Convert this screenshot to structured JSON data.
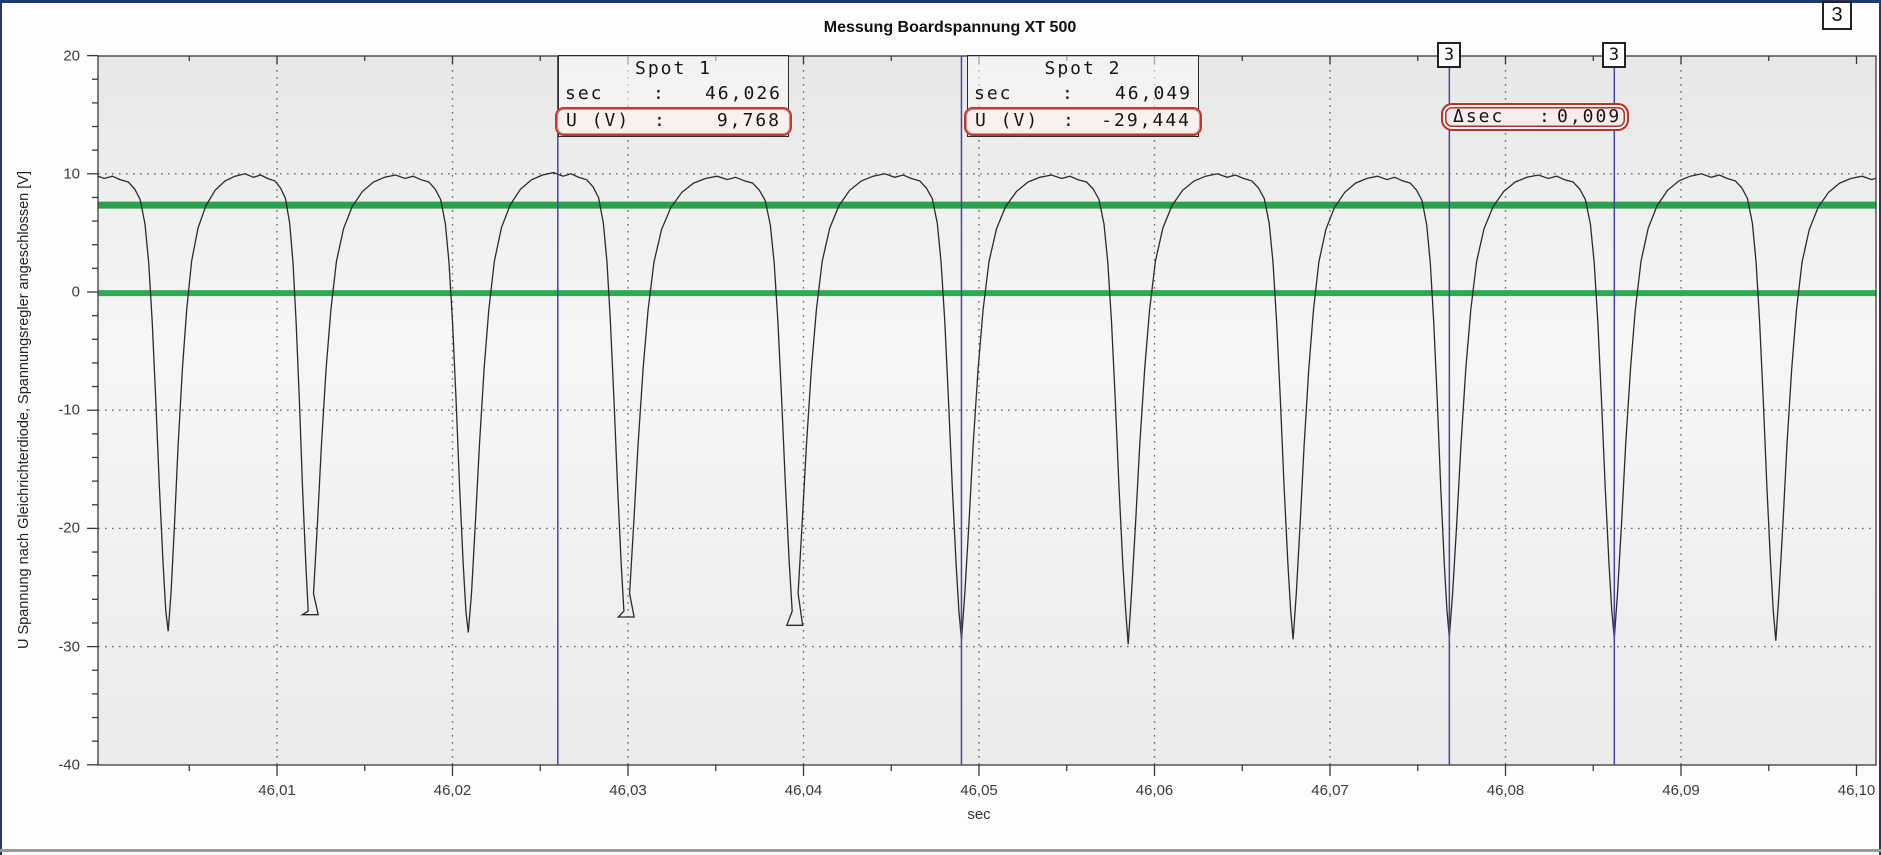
{
  "window": {
    "corner_badge": "3"
  },
  "chart_data": {
    "type": "line",
    "title": "Messung Boardspannung XT 500",
    "xlabel": "sec",
    "ylabel": "U Spannung nach Gleichrichterdiode, Spannungsregler angeschlossen [V]",
    "xlim": [
      46.0,
      46.101
    ],
    "ylim": [
      -40,
      20
    ],
    "x_ticks": [
      {
        "t": 46.01,
        "label": "46,01"
      },
      {
        "t": 46.02,
        "label": "46,02"
      },
      {
        "t": 46.03,
        "label": "46,03"
      },
      {
        "t": 46.04,
        "label": "46,04"
      },
      {
        "t": 46.05,
        "label": "46,05"
      },
      {
        "t": 46.06,
        "label": "46,06"
      },
      {
        "t": 46.07,
        "label": "46,07"
      },
      {
        "t": 46.08,
        "label": "46,08"
      },
      {
        "t": 46.09,
        "label": "46,09"
      },
      {
        "t": 46.1,
        "label": "46,10"
      }
    ],
    "x_minor_step": 0.005,
    "y_ticks": [
      {
        "v": 20,
        "label": "20"
      },
      {
        "v": 10,
        "label": "10"
      },
      {
        "v": 0,
        "label": "0"
      },
      {
        "v": -10,
        "label": "-10"
      },
      {
        "v": -20,
        "label": "-20"
      },
      {
        "v": -30,
        "label": "-30"
      },
      {
        "v": -40,
        "label": "-40"
      }
    ],
    "y_minor_step": 2,
    "grid": {
      "style": "dotted",
      "color": "#4a4a4a",
      "x_lines": [
        46.01,
        46.02,
        46.03,
        46.04,
        46.05,
        46.06,
        46.07,
        46.08,
        46.09
      ],
      "y_lines": [
        10,
        0,
        -10,
        -20,
        -30
      ]
    },
    "reference_lines": [
      {
        "name": "upper-green-line",
        "v": 7.35,
        "color": "#28a24c",
        "width": 7
      },
      {
        "name": "zero-green-line",
        "v": -0.1,
        "color": "#2bab52",
        "width": 6
      }
    ],
    "cursors": [
      {
        "name": "spot-1-cursor",
        "t": 46.026,
        "color": "#4545a8"
      },
      {
        "name": "spot-2-cursor",
        "t": 46.049,
        "color": "#4545a8"
      },
      {
        "name": "delta-cursor-a",
        "t": 46.0768,
        "color": "#4545a8",
        "flag": "3"
      },
      {
        "name": "delta-cursor-b",
        "t": 46.0862,
        "color": "#4545a8",
        "flag": "3"
      }
    ],
    "waveform": {
      "color": "#2b2b2b",
      "period_sec": 0.0091,
      "peak_v_approx": 10,
      "min_v_approx": -29.4,
      "dips": [
        {
          "t": 46.0038,
          "min": -28.7
        },
        {
          "t": 46.0119,
          "min": -27.3,
          "flat": true
        },
        {
          "t": 46.0209,
          "min": -28.8
        },
        {
          "t": 46.0299,
          "min": -27.5,
          "flat": true
        },
        {
          "t": 46.0395,
          "min": -28.2,
          "flat": true
        },
        {
          "t": 46.049,
          "min": -29.4
        },
        {
          "t": 46.0585,
          "min": -29.8
        },
        {
          "t": 46.0679,
          "min": -29.4
        },
        {
          "t": 46.0768,
          "min": -29.2
        },
        {
          "t": 46.0862,
          "min": -29.3
        },
        {
          "t": 46.0954,
          "min": -29.5
        }
      ],
      "peaks": [
        9.9,
        10,
        9.9,
        10.1,
        9.8,
        10,
        9.9,
        10,
        9.8,
        9.9,
        10,
        9.8
      ],
      "template": {
        "phase": [
          0,
          0.02,
          0.045,
          0.07,
          0.1,
          0.13,
          0.165,
          0.21,
          0.265,
          0.33,
          0.4,
          0.47,
          0.54,
          0.6,
          0.65,
          0.7,
          0.75,
          0.79,
          0.825,
          0.855,
          0.878,
          0.9,
          0.922,
          0.945,
          0.968,
          0.985,
          1
        ],
        "v": [
          -29,
          -25.5,
          -19.5,
          -13,
          -6.5,
          -1.5,
          2.6,
          5.4,
          7.3,
          8.6,
          9.4,
          9.8,
          10,
          9.7,
          9.9,
          9.6,
          9.4,
          8.8,
          7.9,
          5.8,
          2.5,
          -2.5,
          -9,
          -16.5,
          -23,
          -27,
          -29
        ]
      }
    }
  },
  "annotations": {
    "spot1": {
      "title": "Spot 1",
      "rows": [
        {
          "label": "sec",
          "sep": ":",
          "value": "46,026"
        },
        {
          "label": "U (V)",
          "sep": ":",
          "value": "9,768"
        }
      ]
    },
    "spot2": {
      "title": "Spot 2",
      "rows": [
        {
          "label": "sec",
          "sep": ":",
          "value": "46,049"
        },
        {
          "label": "U (V)",
          "sep": ":",
          "value": "-29,444"
        }
      ]
    },
    "delta": {
      "label": "Δsec",
      "sep": ":",
      "value": "0,009"
    }
  }
}
